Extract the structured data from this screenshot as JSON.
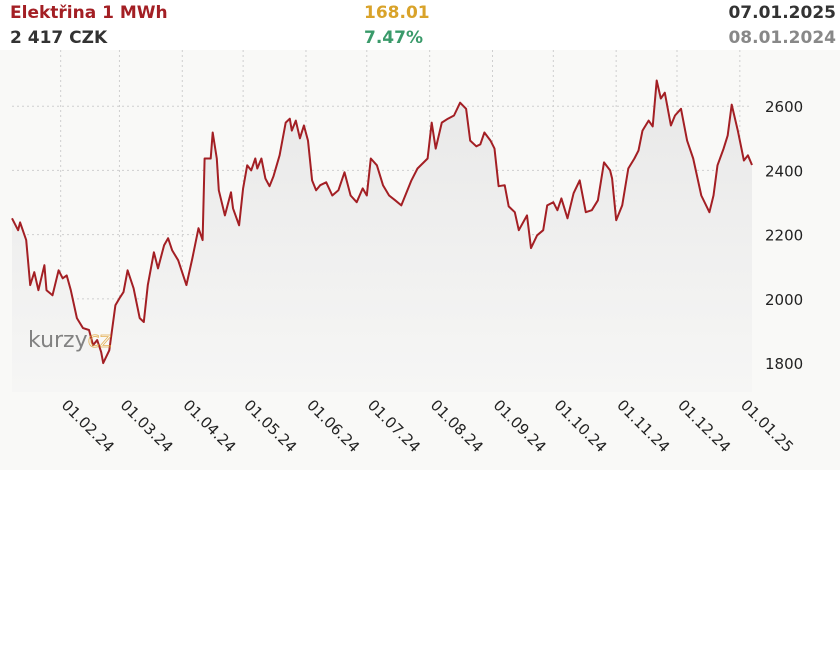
{
  "header": {
    "title": "Elektřina 1 MWh",
    "price": "2 417 CZK",
    "change": "168.01",
    "change_pct": "7.47%",
    "date_end": "07.01.2025",
    "date_start": "08.01.2024"
  },
  "watermark": [
    "kurzy",
    "cz"
  ],
  "chart_data": {
    "type": "line",
    "color": "#a31f24",
    "grid": true,
    "x": [
      "08.01.24",
      "11.01.24",
      "12.01.24",
      "15.01.24",
      "17.01.24",
      "19.01.24",
      "21.01.24",
      "24.01.24",
      "25.01.24",
      "28.01.24",
      "31.01.24",
      "02.02.24",
      "04.02.24",
      "06.02.24",
      "09.02.24",
      "12.02.24",
      "15.02.24",
      "17.02.24",
      "19.02.24",
      "21.02.24",
      "22.02.24",
      "25.02.24",
      "28.02.24",
      "01.03.24",
      "03.03.24",
      "05.03.24",
      "08.03.24",
      "11.03.24",
      "13.03.24",
      "15.03.24",
      "18.03.24",
      "20.03.24",
      "23.03.24",
      "25.03.24",
      "27.03.24",
      "30.03.24",
      "03.04.24",
      "06.04.24",
      "09.04.24",
      "11.04.24",
      "12.04.24",
      "15.04.24",
      "16.04.24",
      "18.04.24",
      "19.04.24",
      "22.04.24",
      "25.04.24",
      "26.04.24",
      "29.04.24",
      "01.05.24",
      "03.05.24",
      "05.05.24",
      "07.05.24",
      "08.05.24",
      "10.05.24",
      "12.05.24",
      "14.05.24",
      "16.05.24",
      "19.05.24",
      "22.05.24",
      "24.05.24",
      "25.05.24",
      "27.05.24",
      "29.05.24",
      "31.05.24",
      "02.06.24",
      "04.06.24",
      "06.06.24",
      "08.06.24",
      "11.06.24",
      "14.06.24",
      "17.06.24",
      "20.06.24",
      "23.06.24",
      "26.06.24",
      "29.06.24",
      "01.07.24",
      "03.07.24",
      "06.07.24",
      "09.07.24",
      "12.07.24",
      "15.07.24",
      "18.07.24",
      "23.07.24",
      "26.07.24",
      "31.07.24",
      "02.08.24",
      "04.08.24",
      "07.08.24",
      "10.08.24",
      "13.08.24",
      "16.08.24",
      "19.08.24",
      "21.08.24",
      "24.08.24",
      "26.08.24",
      "28.08.24",
      "31.08.24",
      "02.09.24",
      "04.09.24",
      "07.09.24",
      "09.09.24",
      "12.09.24",
      "14.09.24",
      "18.09.24",
      "20.09.24",
      "23.09.24",
      "26.09.24",
      "28.09.24",
      "01.10.24",
      "03.10.24",
      "05.10.24",
      "08.10.24",
      "11.10.24",
      "14.10.24",
      "17.10.24",
      "20.10.24",
      "23.10.24",
      "26.10.24",
      "29.10.24",
      "30.10.24",
      "01.11.24",
      "04.11.24",
      "07.11.24",
      "10.11.24",
      "12.11.24",
      "14.11.24",
      "17.11.24",
      "19.11.24",
      "21.11.24",
      "23.11.24",
      "25.11.24",
      "28.11.24",
      "30.11.24",
      "03.12.24",
      "06.12.24",
      "09.12.24",
      "13.12.24",
      "17.12.24",
      "19.12.24",
      "21.12.24",
      "24.12.24",
      "26.12.24",
      "28.12.24",
      "31.12.24",
      "03.01.25",
      "05.01.25",
      "07.01.25"
    ],
    "values": [
      2251,
      2214,
      2238,
      2183,
      2043,
      2083,
      2027,
      2105,
      2027,
      2011,
      2089,
      2064,
      2073,
      2027,
      1940,
      1909,
      1903,
      1856,
      1872,
      1834,
      1800,
      1840,
      1980,
      2002,
      2021,
      2089,
      2033,
      1940,
      1928,
      2043,
      2145,
      2095,
      2167,
      2189,
      2151,
      2120,
      2043,
      2127,
      2220,
      2183,
      2437,
      2437,
      2518,
      2437,
      2338,
      2260,
      2332,
      2282,
      2229,
      2344,
      2416,
      2400,
      2437,
      2406,
      2437,
      2375,
      2351,
      2382,
      2447,
      2549,
      2561,
      2524,
      2555,
      2500,
      2540,
      2493,
      2369,
      2338,
      2354,
      2363,
      2322,
      2338,
      2394,
      2322,
      2301,
      2344,
      2322,
      2437,
      2416,
      2354,
      2322,
      2307,
      2291,
      2369,
      2406,
      2437,
      2549,
      2468,
      2549,
      2561,
      2571,
      2611,
      2592,
      2493,
      2475,
      2481,
      2518,
      2493,
      2468,
      2351,
      2354,
      2288,
      2270,
      2214,
      2260,
      2158,
      2198,
      2214,
      2291,
      2301,
      2276,
      2313,
      2251,
      2329,
      2369,
      2270,
      2276,
      2307,
      2425,
      2400,
      2375,
      2245,
      2291,
      2406,
      2437,
      2462,
      2524,
      2555,
      2537,
      2680,
      2624,
      2642,
      2540,
      2571,
      2592,
      2493,
      2437,
      2322,
      2270,
      2322,
      2416,
      2468,
      2509,
      2605,
      2524,
      2431,
      2447,
      2417
    ],
    "xlim": [
      "08.01.24",
      "07.01.25"
    ],
    "xticks": [
      "01.02.24",
      "01.03.24",
      "01.04.24",
      "01.05.24",
      "01.06.24",
      "01.07.24",
      "01.08.24",
      "01.09.24",
      "01.10.24",
      "01.11.24",
      "01.12.24",
      "01.01.25"
    ],
    "ylim": [
      1710,
      2775
    ],
    "yticks": [
      1800,
      2000,
      2200,
      2400,
      2600
    ]
  }
}
